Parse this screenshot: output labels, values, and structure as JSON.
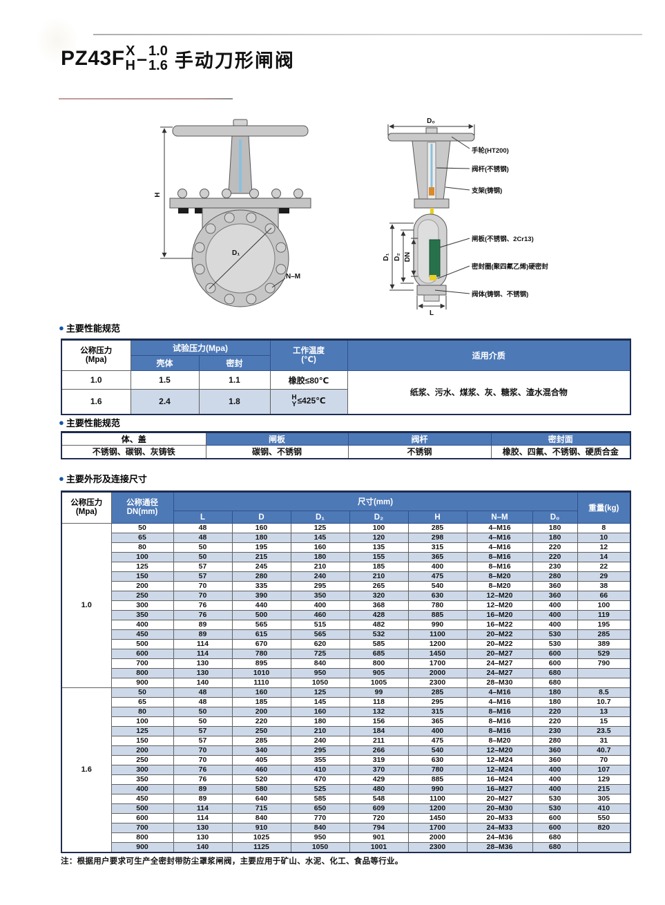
{
  "title": {
    "model": "PZ43F",
    "variant_top": "X",
    "variant_bottom": "H",
    "dash": "–",
    "pressure_top": "1.0",
    "pressure_bottom": "1.6",
    "name": "手动刀形闸阀"
  },
  "drawing_front": {
    "dim_h": "H",
    "dim_d1": "D₁",
    "dim_nm": "N–M"
  },
  "drawing_side": {
    "dim_d0": "D₀",
    "dim_d1": "D₁",
    "dim_d2": "D₂",
    "dim_dn": "DN",
    "dim_l": "L",
    "label_handwheel": "手轮(HT200)",
    "label_stem": "阀杆(不锈钢)",
    "label_yoke": "支架(铸钢)",
    "label_gate": "闸板(不锈钢、2Cr13)",
    "label_seal": "密封圈(聚四氟乙烯)硬密封",
    "label_body": "阀体(铸钢、不锈钢)"
  },
  "sections": {
    "bullet": "●",
    "performance_heading": "主要性能规范",
    "materials_heading": "主要性能规范",
    "dimensions_heading": "主要外形及连接尺寸"
  },
  "performance_table": {
    "col_pressure": "公称压力",
    "col_pressure_unit": "(Mpa)",
    "col_test": "试验压力(Mpa)",
    "col_shell": "壳体",
    "col_seal": "密封",
    "col_temp": "工作温度",
    "col_temp_unit": "(℃)",
    "col_medium": "适用介质",
    "row1": {
      "pressure": "1.0",
      "shell": "1.5",
      "seal": "1.1",
      "temp": "橡胶≤80℃"
    },
    "row2": {
      "pressure": "1.6",
      "shell": "2.4",
      "seal": "1.8",
      "temp_h": "H",
      "temp_y": "Y",
      "temp_val": "≤425℃"
    },
    "medium": "纸浆、污水、煤浆、灰、糖浆、渣水混合物"
  },
  "materials_table": {
    "headers": [
      "体、盖",
      "闸板",
      "阀杆",
      "密封面"
    ],
    "values": [
      "不锈钢、碳钢、灰铸铁",
      "碳钢、不锈钢",
      "不锈钢",
      "橡胶、四氟、不锈钢、硬质合金"
    ]
  },
  "dimension_table": {
    "col_pressure": "公称压力",
    "col_pressure_unit": "(Mpa)",
    "col_dn": "公称通径",
    "col_dn_unit": "DN(mm)",
    "col_size": "尺寸(mm)",
    "subcols": [
      "L",
      "D",
      "D₁",
      "D₂",
      "H",
      "N–M",
      "D₀"
    ],
    "col_weight": "重量(kg)",
    "groups": [
      {
        "pressure": "1.0",
        "rows": [
          [
            "50",
            "48",
            "160",
            "125",
            "100",
            "285",
            "4–M16",
            "180",
            "8"
          ],
          [
            "65",
            "48",
            "180",
            "145",
            "120",
            "298",
            "4–M16",
            "180",
            "10"
          ],
          [
            "80",
            "50",
            "195",
            "160",
            "135",
            "315",
            "4–M16",
            "220",
            "12"
          ],
          [
            "100",
            "50",
            "215",
            "180",
            "155",
            "365",
            "8–M16",
            "220",
            "14"
          ],
          [
            "125",
            "57",
            "245",
            "210",
            "185",
            "400",
            "8–M16",
            "230",
            "22"
          ],
          [
            "150",
            "57",
            "280",
            "240",
            "210",
            "475",
            "8–M20",
            "280",
            "29"
          ],
          [
            "200",
            "70",
            "335",
            "295",
            "265",
            "540",
            "8–M20",
            "360",
            "38"
          ],
          [
            "250",
            "70",
            "390",
            "350",
            "320",
            "630",
            "12–M20",
            "360",
            "66"
          ],
          [
            "300",
            "76",
            "440",
            "400",
            "368",
            "780",
            "12–M20",
            "400",
            "100"
          ],
          [
            "350",
            "76",
            "500",
            "460",
            "428",
            "885",
            "16–M20",
            "400",
            "119"
          ],
          [
            "400",
            "89",
            "565",
            "515",
            "482",
            "990",
            "16–M22",
            "400",
            "195"
          ],
          [
            "450",
            "89",
            "615",
            "565",
            "532",
            "1100",
            "20–M22",
            "530",
            "285"
          ],
          [
            "500",
            "114",
            "670",
            "620",
            "585",
            "1200",
            "20–M22",
            "530",
            "389"
          ],
          [
            "600",
            "114",
            "780",
            "725",
            "685",
            "1450",
            "20–M27",
            "600",
            "529"
          ],
          [
            "700",
            "130",
            "895",
            "840",
            "800",
            "1700",
            "24–M27",
            "600",
            "790"
          ],
          [
            "800",
            "130",
            "1010",
            "950",
            "905",
            "2000",
            "24–M27",
            "680",
            ""
          ],
          [
            "900",
            "140",
            "1110",
            "1050",
            "1005",
            "2300",
            "28–M30",
            "680",
            ""
          ]
        ]
      },
      {
        "pressure": "1.6",
        "rows": [
          [
            "50",
            "48",
            "160",
            "125",
            "99",
            "285",
            "4–M16",
            "180",
            "8.5"
          ],
          [
            "65",
            "48",
            "185",
            "145",
            "118",
            "295",
            "4–M16",
            "180",
            "10.7"
          ],
          [
            "80",
            "50",
            "200",
            "160",
            "132",
            "315",
            "8–M16",
            "220",
            "13"
          ],
          [
            "100",
            "50",
            "220",
            "180",
            "156",
            "365",
            "8–M16",
            "220",
            "15"
          ],
          [
            "125",
            "57",
            "250",
            "210",
            "184",
            "400",
            "8–M16",
            "230",
            "23.5"
          ],
          [
            "150",
            "57",
            "285",
            "240",
            "211",
            "475",
            "8–M20",
            "280",
            "31"
          ],
          [
            "200",
            "70",
            "340",
            "295",
            "266",
            "540",
            "12–M20",
            "360",
            "40.7"
          ],
          [
            "250",
            "70",
            "405",
            "355",
            "319",
            "630",
            "12–M24",
            "360",
            "70"
          ],
          [
            "300",
            "76",
            "460",
            "410",
            "370",
            "780",
            "12–M24",
            "400",
            "107"
          ],
          [
            "350",
            "76",
            "520",
            "470",
            "429",
            "885",
            "16–M24",
            "400",
            "129"
          ],
          [
            "400",
            "89",
            "580",
            "525",
            "480",
            "990",
            "16–M27",
            "400",
            "215"
          ],
          [
            "450",
            "89",
            "640",
            "585",
            "548",
            "1100",
            "20–M27",
            "530",
            "305"
          ],
          [
            "500",
            "114",
            "715",
            "650",
            "609",
            "1200",
            "20–M30",
            "530",
            "410"
          ],
          [
            "600",
            "114",
            "840",
            "770",
            "720",
            "1450",
            "20–M33",
            "600",
            "550"
          ],
          [
            "700",
            "130",
            "910",
            "840",
            "794",
            "1700",
            "24–M33",
            "600",
            "820"
          ],
          [
            "800",
            "130",
            "1025",
            "950",
            "901",
            "2000",
            "24–M36",
            "680",
            ""
          ],
          [
            "900",
            "140",
            "1125",
            "1050",
            "1001",
            "2300",
            "28–M36",
            "680",
            ""
          ]
        ]
      }
    ]
  },
  "note": "注：根据用户要求可生产全密封带防尘罩浆闸阀，主要应用于矿山、水泥、化工、食品等行业。",
  "colors": {
    "header_blue": "#4d79b7",
    "stripe_blue": "#cdd9e9",
    "border_navy": "#1d2c50",
    "bullet_blue": "#1456a3",
    "gate_green": "#27714a",
    "stem_yellow": "#e8cf2a",
    "stem_blue": "#8cc0dd"
  }
}
